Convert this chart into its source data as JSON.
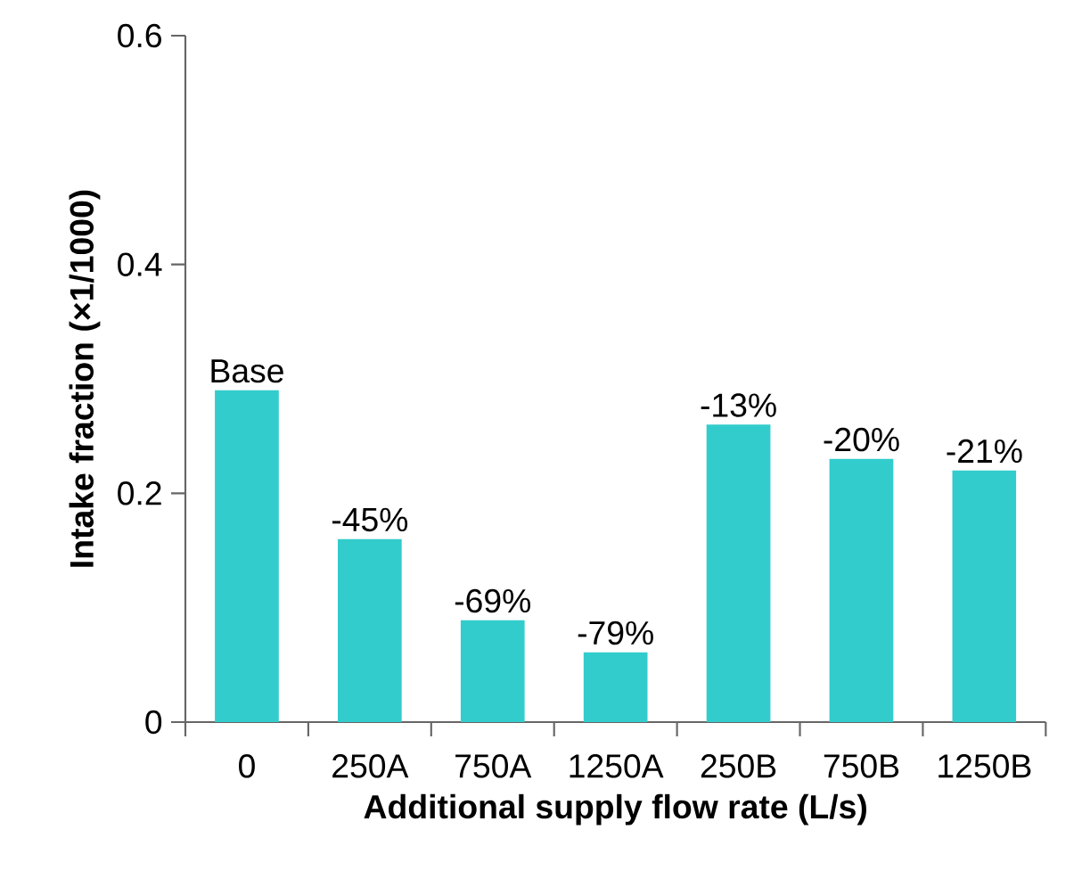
{
  "chart_data": {
    "type": "bar",
    "xlabel": "Additional supply flow rate (L/s)",
    "ylabel": "Intake fraction (×1/1000)",
    "categories": [
      "0",
      "250A",
      "750A",
      "1250A",
      "250B",
      "750B",
      "1250B"
    ],
    "values": [
      0.29,
      0.16,
      0.089,
      0.061,
      0.26,
      0.23,
      0.22
    ],
    "annotations": [
      {
        "text": "Base",
        "x": "0",
        "y": 0.29
      },
      {
        "text": "-45%",
        "x": "250A",
        "y": 0.16
      },
      {
        "text": "-69%",
        "x": "750A",
        "y": 0.089
      },
      {
        "text": "-79%",
        "x": "1250A",
        "y": 0.061
      },
      {
        "text": "-13%",
        "x": "250B",
        "y": 0.26
      },
      {
        "text": "-20%",
        "x": "750B",
        "y": 0.23
      },
      {
        "text": "-21%",
        "x": "1250B",
        "y": 0.22
      }
    ],
    "color": "#33cccc",
    "ylim": [
      0,
      0.6
    ],
    "yticks": [
      0,
      {
        "value": 0.2,
        "label": "0.2"
      },
      {
        "value": 0.4,
        "label": "0.4"
      },
      {
        "value": 0.6,
        "label": "0.6"
      }
    ],
    "grid": false
  }
}
